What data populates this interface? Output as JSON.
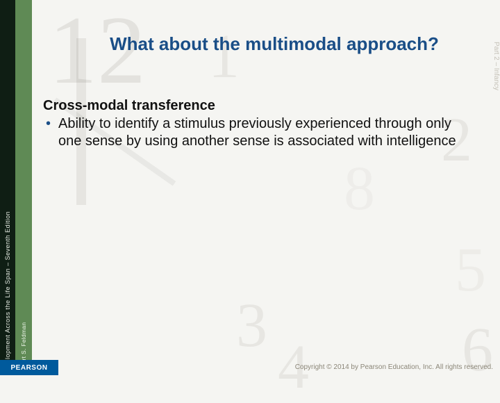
{
  "spine": {
    "book_title": "Development Across the Life Span – Seventh Edition",
    "author": "Robert S. Feldman"
  },
  "right_strip": "Part 2 – Infancy",
  "title": "What about the multimodal approach?",
  "content": {
    "subheading": "Cross-modal transference",
    "bullet": "Ability to identify a stimulus previously experienced through only one sense by using another sense is associated with intelligence"
  },
  "footer": {
    "publisher": "PEARSON",
    "copyright": "Copyright © 2014 by Pearson Education, Inc. All rights reserved."
  },
  "colors": {
    "title_color": "#1a4e87",
    "bullet_color": "#1a4e87",
    "spine_dark": "#0f1e14",
    "spine_green": "#5f8a55",
    "background": "#f5f5f2",
    "pearson_blue": "#005a9c"
  }
}
